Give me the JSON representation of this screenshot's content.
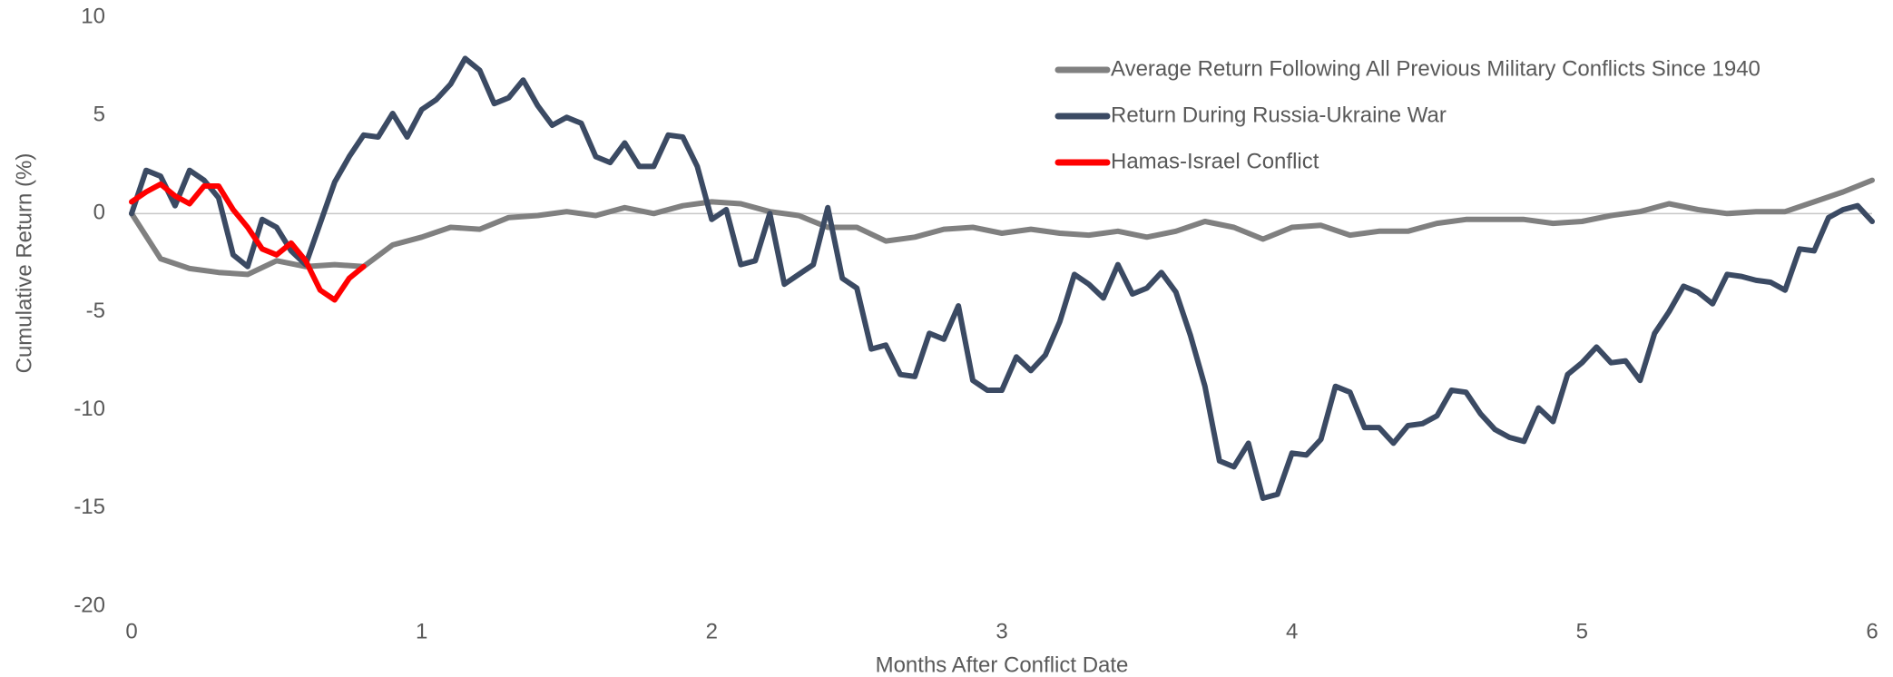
{
  "chart_data": {
    "type": "line",
    "xlabel": "Months After Conflict Date",
    "ylabel": "Cumulative Return (%)",
    "xlim": [
      0,
      6
    ],
    "xticks": [
      0,
      1,
      2,
      3,
      4,
      5,
      6
    ],
    "ylim": [
      -20,
      10
    ],
    "yticks": [
      -20,
      -15,
      -10,
      -5,
      0,
      5,
      10
    ],
    "legend": "upper right",
    "series": [
      {
        "name": "Average Return Following All Previous Military Conflicts Since 1940",
        "color": "#808080",
        "x": [
          0,
          0.1,
          0.2,
          0.3,
          0.4,
          0.5,
          0.6,
          0.7,
          0.8,
          0.9,
          1,
          1.1,
          1.2,
          1.3,
          1.4,
          1.5,
          1.6,
          1.7,
          1.8,
          1.9,
          2,
          2.1,
          2.2,
          2.3,
          2.4,
          2.5,
          2.6,
          2.7,
          2.8,
          2.9,
          3,
          3.1,
          3.2,
          3.3,
          3.4,
          3.5,
          3.6,
          3.7,
          3.8,
          3.9,
          4,
          4.1,
          4.2,
          4.3,
          4.4,
          4.5,
          4.6,
          4.7,
          4.8,
          4.9,
          5,
          5.1,
          5.2,
          5.3,
          5.4,
          5.5,
          5.6,
          5.7,
          5.8,
          5.9,
          6
        ],
        "values": [
          0,
          -2.3,
          -2.8,
          -3.0,
          -3.1,
          -2.4,
          -2.7,
          -2.6,
          -2.7,
          -1.6,
          -1.2,
          -0.7,
          -0.8,
          -0.2,
          -0.1,
          0.1,
          -0.1,
          0.3,
          0.0,
          0.4,
          0.6,
          0.5,
          0.1,
          -0.1,
          -0.7,
          -0.7,
          -1.4,
          -1.2,
          -0.8,
          -0.7,
          -1.0,
          -0.8,
          -1.0,
          -1.1,
          -0.9,
          -1.2,
          -0.9,
          -0.4,
          -0.7,
          -1.3,
          -0.7,
          -0.6,
          -1.1,
          -0.9,
          -0.9,
          -0.5,
          -0.3,
          -0.3,
          -0.3,
          -0.5,
          -0.4,
          -0.1,
          0.1,
          0.5,
          0.2,
          0.0,
          0.1,
          0.1,
          0.6,
          1.1,
          1.7
        ]
      },
      {
        "name": "Return During Russia-Ukraine War",
        "color": "#3b4a63",
        "x": [
          0,
          0.05,
          0.1,
          0.15,
          0.2,
          0.25,
          0.3,
          0.35,
          0.4,
          0.45,
          0.5,
          0.55,
          0.6,
          0.65,
          0.7,
          0.75,
          0.8,
          0.85,
          0.9,
          0.95,
          1,
          1.05,
          1.1,
          1.15,
          1.2,
          1.25,
          1.3,
          1.35,
          1.4,
          1.45,
          1.5,
          1.55,
          1.6,
          1.65,
          1.7,
          1.75,
          1.8,
          1.85,
          1.9,
          1.95,
          2,
          2.05,
          2.1,
          2.15,
          2.2,
          2.25,
          2.3,
          2.35,
          2.4,
          2.45,
          2.5,
          2.55,
          2.6,
          2.65,
          2.7,
          2.75,
          2.8,
          2.85,
          2.9,
          2.95,
          3,
          3.05,
          3.1,
          3.15,
          3.2,
          3.25,
          3.3,
          3.35,
          3.4,
          3.45,
          3.5,
          3.55,
          3.6,
          3.65,
          3.7,
          3.75,
          3.8,
          3.85,
          3.9,
          3.95,
          4,
          4.05,
          4.1,
          4.15,
          4.2,
          4.25,
          4.3,
          4.35,
          4.4,
          4.45,
          4.5,
          4.55,
          4.6,
          4.65,
          4.7,
          4.75,
          4.8,
          4.85,
          4.9,
          4.95,
          5,
          5.05,
          5.1,
          5.15,
          5.2,
          5.25,
          5.3,
          5.35,
          5.4,
          5.45,
          5.5,
          5.55,
          5.6,
          5.65,
          5.7,
          5.75,
          5.8,
          5.85,
          5.9,
          5.95,
          6
        ],
        "values": [
          0,
          2.2,
          1.9,
          0.4,
          2.2,
          1.7,
          0.8,
          -2.1,
          -2.7,
          -0.3,
          -0.7,
          -1.9,
          -2.6,
          -0.5,
          1.6,
          2.9,
          4.0,
          3.9,
          5.1,
          3.9,
          5.3,
          5.8,
          6.6,
          7.9,
          7.3,
          5.6,
          5.9,
          6.8,
          5.5,
          4.5,
          4.9,
          4.6,
          2.9,
          2.6,
          3.6,
          2.4,
          2.4,
          4.0,
          3.9,
          2.4,
          -0.3,
          0.2,
          -2.6,
          -2.4,
          0.0,
          -3.6,
          -3.1,
          -2.6,
          0.3,
          -3.3,
          -3.8,
          -6.9,
          -6.7,
          -8.2,
          -8.3,
          -6.1,
          -6.4,
          -4.7,
          -8.5,
          -9.0,
          -9.0,
          -7.3,
          -8.0,
          -7.2,
          -5.5,
          -3.1,
          -3.6,
          -4.3,
          -2.6,
          -4.1,
          -3.8,
          -3.0,
          -4.0,
          -6.2,
          -8.8,
          -12.6,
          -12.9,
          -11.7,
          -14.5,
          -14.3,
          -12.2,
          -12.3,
          -11.5,
          -8.8,
          -9.1,
          -10.9,
          -10.9,
          -11.7,
          -10.8,
          -10.7,
          -10.3,
          -9.0,
          -9.1,
          -10.2,
          -11.0,
          -11.4,
          -11.6,
          -9.9,
          -10.6,
          -8.2,
          -7.6,
          -6.8,
          -7.6,
          -7.5,
          -8.5,
          -6.1,
          -5.0,
          -3.7,
          -4.0,
          -4.6,
          -3.1,
          -3.2,
          -3.4,
          -3.5,
          -3.9,
          -1.8,
          -1.9,
          -0.2,
          0.2,
          0.4,
          -0.4
        ]
      },
      {
        "name": "Hamas-Israel Conflict",
        "color": "#ff0000",
        "x": [
          0,
          0.05,
          0.1,
          0.15,
          0.2,
          0.25,
          0.3,
          0.35,
          0.4,
          0.45,
          0.5,
          0.55,
          0.6,
          0.65,
          0.7,
          0.75,
          0.8
        ],
        "values": [
          0.6,
          1.1,
          1.5,
          0.9,
          0.5,
          1.4,
          1.4,
          0.2,
          -0.7,
          -1.8,
          -2.1,
          -1.5,
          -2.4,
          -3.9,
          -4.4,
          -3.3,
          -2.7
        ]
      }
    ]
  }
}
